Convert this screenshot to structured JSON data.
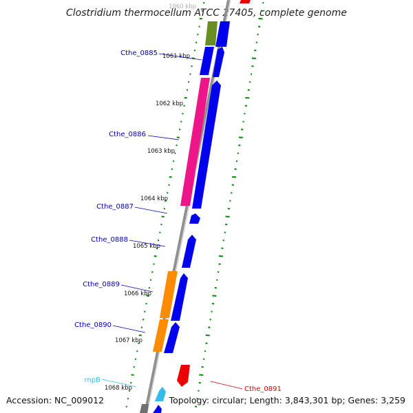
{
  "header": {
    "title": "Clostridium thermocellum ATCC 27405, complete genome"
  },
  "footer": {
    "accession": "Accession: NC_009012",
    "summary": "Topology: circular; Length: 3,843,301 bp; Genes: 3,259"
  },
  "colors": {
    "backbone": "#909090",
    "cds_forward": "#0000ee",
    "cds_reverse_pink": "#ee1589",
    "cds_reverse_orange": "#ff8c00",
    "cds_olive": "#6b8e23",
    "cds_reverse_red": "#ee0000",
    "rna": "#33bbee",
    "other": "#707070",
    "gc_skew_dots": "#008800",
    "label_blue": "#0000bb",
    "label_red": "#dd0000",
    "label_cyan": "#33bbee"
  },
  "kbp_labels": [
    "1060 kbp",
    "1061 kbp",
    "1062 kbp",
    "1063 kbp",
    "1064 kbp",
    "1065 kbp",
    "1066 kbp",
    "1067 kbp",
    "1068 kbp"
  ],
  "gene_labels": {
    "cthe_0885": "Cthe_0885",
    "cthe_0886": "Cthe_0886",
    "cthe_0887": "Cthe_0887",
    "cthe_0888": "Cthe_0888",
    "cthe_0889": "Cthe_0889",
    "cthe_0890": "Cthe_0890",
    "cthe_0891": "Cthe_0891",
    "rnpb": "rnpB"
  }
}
